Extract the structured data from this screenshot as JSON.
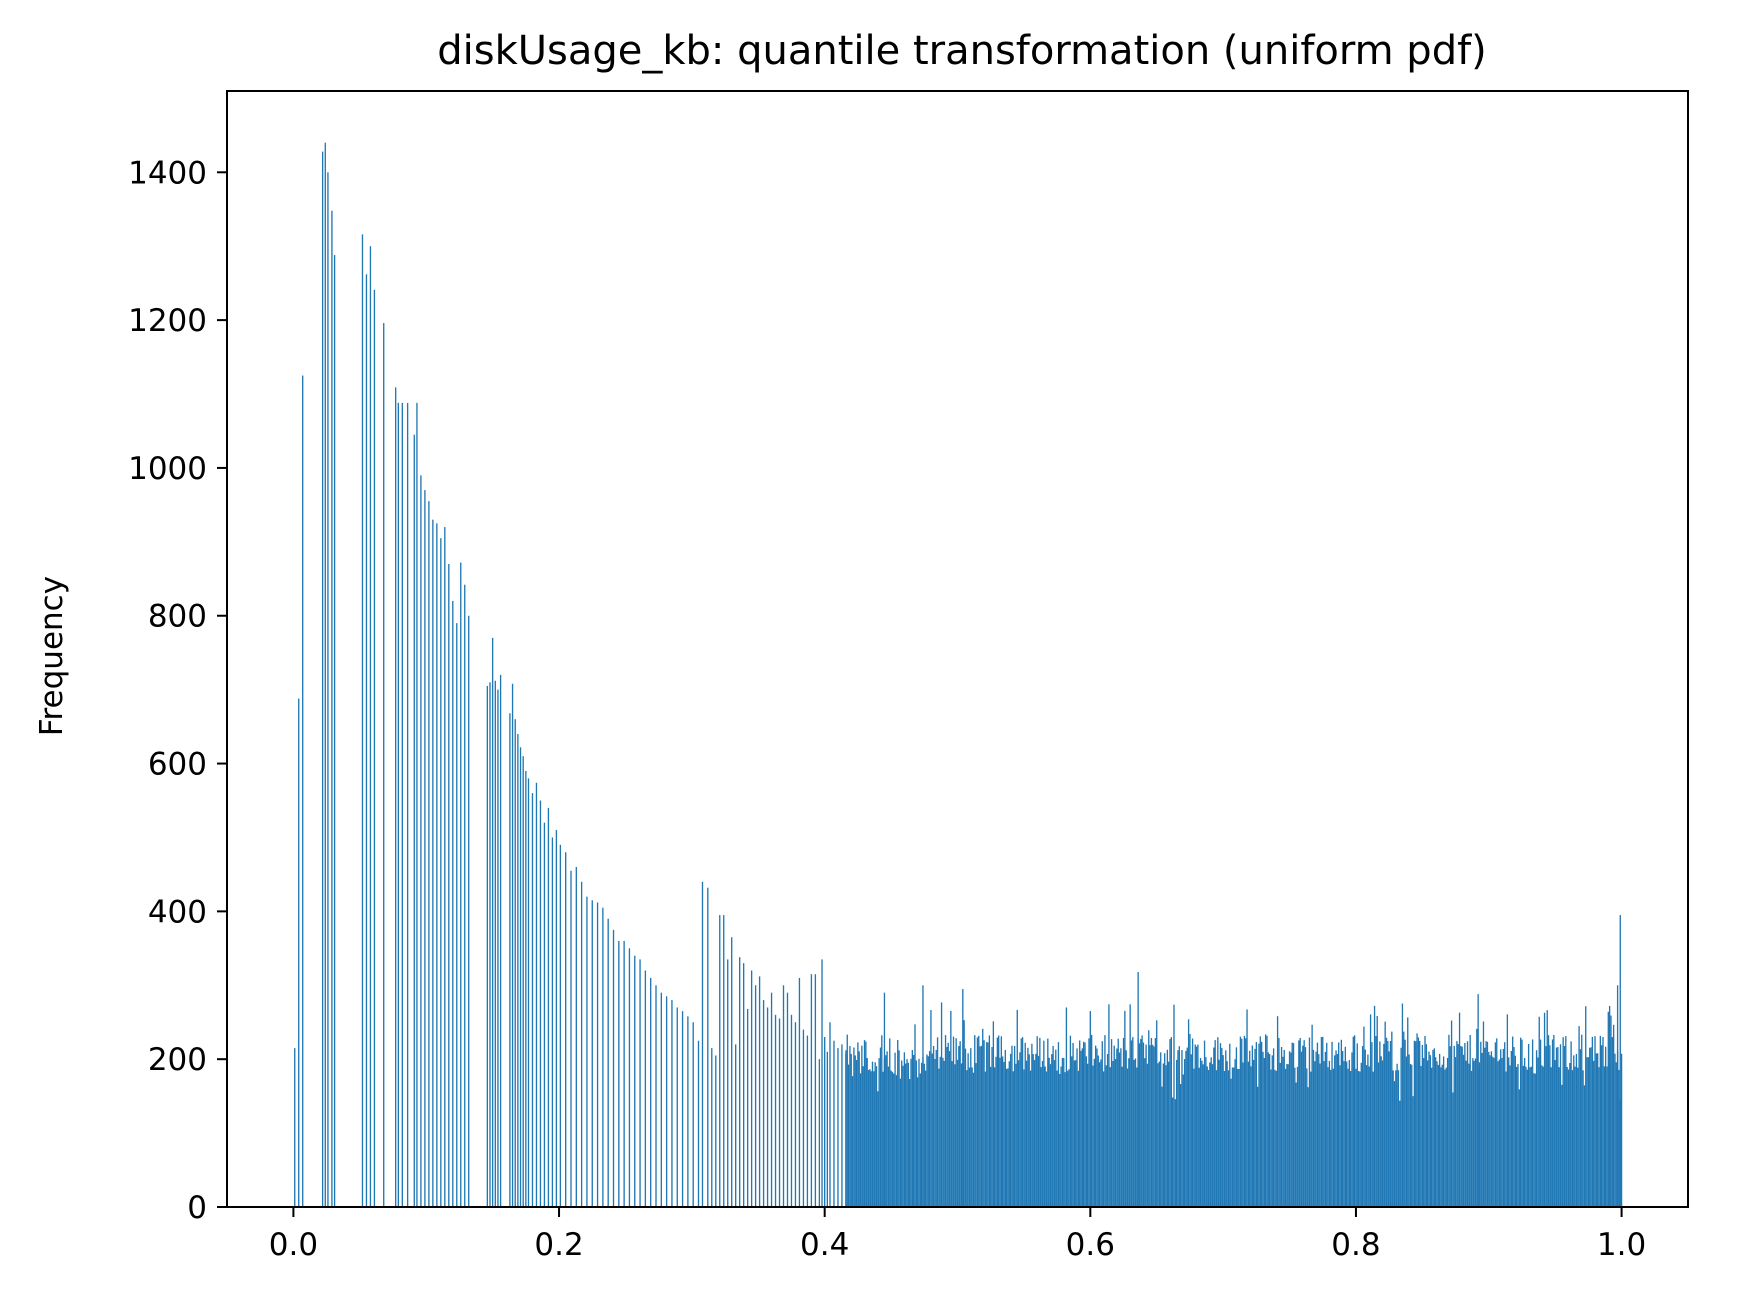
{
  "chart_data": {
    "type": "bar",
    "title": "diskUsage_kb: quantile transformation (uniform pdf)",
    "xlabel": "",
    "ylabel": "Frequency",
    "xlim": [
      -0.05,
      1.05
    ],
    "ylim": [
      0,
      1510
    ],
    "xticks": [
      0.0,
      0.2,
      0.4,
      0.6,
      0.8,
      1.0
    ],
    "xtick_labels": [
      "0.0",
      "0.2",
      "0.4",
      "0.6",
      "0.8",
      "1.0"
    ],
    "yticks": [
      0,
      200,
      400,
      600,
      800,
      1000,
      1200,
      1400
    ],
    "ytick_labels": [
      "0",
      "200",
      "400",
      "600",
      "800",
      "1000",
      "1200",
      "1400"
    ],
    "grid": false,
    "bar_color": "#1f77b4",
    "bin_width": 0.001,
    "bars": {
      "x": [
        0.001,
        0.004,
        0.007,
        0.022,
        0.024,
        0.026,
        0.029,
        0.031,
        0.052,
        0.055,
        0.058,
        0.061,
        0.068,
        0.077,
        0.079,
        0.082,
        0.086,
        0.091,
        0.093,
        0.096,
        0.099,
        0.102,
        0.105,
        0.108,
        0.111,
        0.114,
        0.117,
        0.12,
        0.123,
        0.126,
        0.129,
        0.132,
        0.146,
        0.148,
        0.15,
        0.152,
        0.154,
        0.156,
        0.163,
        0.165,
        0.167,
        0.169,
        0.171,
        0.173,
        0.175,
        0.177,
        0.18,
        0.183,
        0.186,
        0.189,
        0.192,
        0.195,
        0.198,
        0.201,
        0.205,
        0.209,
        0.213,
        0.217,
        0.221,
        0.225,
        0.229,
        0.233,
        0.237,
        0.241,
        0.245,
        0.249,
        0.253,
        0.257,
        0.261,
        0.265,
        0.269,
        0.273,
        0.277,
        0.281,
        0.285,
        0.289,
        0.293,
        0.297,
        0.301,
        0.305,
        0.308,
        0.312,
        0.315,
        0.318,
        0.321,
        0.324,
        0.327,
        0.33,
        0.333,
        0.336,
        0.339,
        0.342,
        0.345,
        0.348,
        0.351,
        0.354,
        0.357,
        0.36,
        0.363,
        0.366,
        0.369,
        0.372,
        0.375,
        0.378,
        0.381,
        0.384,
        0.387,
        0.39,
        0.393,
        0.396,
        0.398,
        0.4,
        0.402,
        0.404,
        0.407,
        0.41,
        0.413,
        0.416
      ],
      "values": [
        215,
        688,
        1125,
        1428,
        1440,
        1400,
        1348,
        1288,
        1316,
        1262,
        1300,
        1241,
        1196,
        1109,
        1088,
        1088,
        1088,
        1045,
        1088,
        990,
        970,
        955,
        930,
        925,
        905,
        920,
        870,
        820,
        790,
        872,
        842,
        800,
        705,
        710,
        770,
        712,
        700,
        720,
        668,
        708,
        660,
        640,
        622,
        610,
        590,
        580,
        560,
        574,
        550,
        520,
        540,
        500,
        510,
        490,
        480,
        455,
        460,
        440,
        420,
        415,
        412,
        405,
        390,
        375,
        360,
        360,
        350,
        340,
        335,
        320,
        310,
        300,
        290,
        285,
        280,
        270,
        265,
        258,
        250,
        225,
        440,
        432,
        215,
        205,
        395,
        395,
        335,
        365,
        220,
        338,
        330,
        268,
        320,
        300,
        312,
        280,
        270,
        290,
        260,
        255,
        300,
        290,
        260,
        250,
        310,
        240,
        232,
        315,
        315,
        200,
        335,
        230,
        210,
        250,
        225,
        215,
        220,
        212
      ]
    },
    "tail": {
      "x_start": 0.416,
      "x_end": 1.0,
      "bins": 585,
      "level": 200,
      "spread": 25,
      "peaks": [
        {
          "x": 0.445,
          "y": 290
        },
        {
          "x": 0.474,
          "y": 300
        },
        {
          "x": 0.504,
          "y": 295
        },
        {
          "x": 0.636,
          "y": 318
        },
        {
          "x": 0.892,
          "y": 288
        },
        {
          "x": 0.991,
          "y": 272
        },
        {
          "x": 0.997,
          "y": 300
        },
        {
          "x": 0.999,
          "y": 395
        }
      ]
    }
  }
}
